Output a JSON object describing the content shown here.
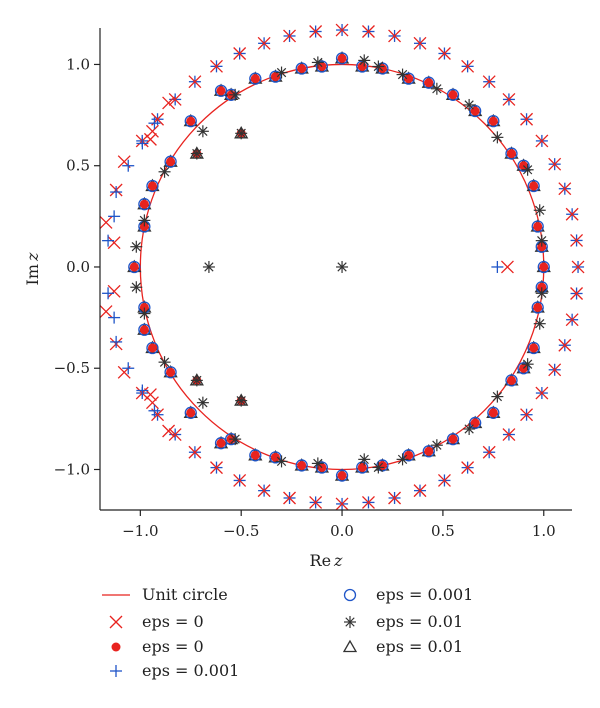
{
  "chart_data": {
    "type": "scatter",
    "title": "",
    "xlabel": "Re z",
    "ylabel": "Im z",
    "xlabel_parts": [
      "Re",
      "z"
    ],
    "ylabel_parts": [
      "Im",
      "z"
    ],
    "xlim": [
      -1.2,
      1.14
    ],
    "ylim": [
      -1.2,
      1.18
    ],
    "x_ticks": [
      -1.0,
      -0.5,
      0.0,
      0.5,
      1.0
    ],
    "y_ticks": [
      -1.0,
      -0.5,
      0.0,
      0.5,
      1.0
    ],
    "x_tick_labels": [
      "−1.0",
      "−0.5",
      "0.0",
      "0.5",
      "1.0"
    ],
    "y_tick_labels": [
      "−1.0",
      "−0.5",
      "0.0",
      "0.5",
      "1.0"
    ],
    "grid": false,
    "legend_placement": "bottom",
    "colors": {
      "red": "#e8231f",
      "blue": "#1f55c8",
      "dark": "#333333"
    },
    "legend": [
      {
        "label": "Unit circle",
        "marker": "line",
        "color": "#e8231f"
      },
      {
        "label": "eps = 0",
        "marker": "x",
        "color": "#e8231f"
      },
      {
        "label": "eps = 0",
        "marker": "dot",
        "color": "#e8231f"
      },
      {
        "label": "eps = 0.001",
        "marker": "plus",
        "color": "#1f55c8"
      },
      {
        "label": "eps = 0.001",
        "marker": "circle",
        "color": "#1f55c8"
      },
      {
        "label": "eps = 0.01",
        "marker": "star",
        "color": "#333333"
      },
      {
        "label": "eps = 0.01",
        "marker": "triangle",
        "color": "#333333"
      }
    ],
    "series": [
      {
        "name": "Unit circle",
        "kind": "line",
        "radius": 1.0
      },
      {
        "name": "eps = 0",
        "marker": "x",
        "outer_ring": {
          "radius": 1.17,
          "count": 56,
          "phase_deg": 0
        },
        "points": [
          [
            0.82,
            0.0
          ],
          [
            -1.12,
            0.38
          ],
          [
            -1.13,
            0.12
          ],
          [
            -1.13,
            -0.12
          ],
          [
            -1.12,
            -0.38
          ],
          [
            -1.08,
            0.52
          ],
          [
            -1.08,
            -0.52
          ],
          [
            -0.94,
            0.67
          ],
          [
            -0.94,
            -0.67
          ],
          [
            -0.95,
            0.63
          ],
          [
            -0.95,
            -0.63
          ],
          [
            -0.86,
            0.81
          ],
          [
            -0.86,
            -0.81
          ],
          [
            -1.17,
            0.22
          ],
          [
            -1.17,
            -0.22
          ]
        ]
      },
      {
        "name": "eps = 0",
        "marker": "dot",
        "near_circle": [
          [
            1.0,
            0.0
          ],
          [
            0.99,
            0.1
          ],
          [
            0.99,
            -0.1
          ],
          [
            0.97,
            0.2
          ],
          [
            0.97,
            -0.2
          ],
          [
            0.95,
            0.4
          ],
          [
            0.95,
            -0.4
          ],
          [
            0.9,
            0.5
          ],
          [
            0.9,
            -0.5
          ],
          [
            0.84,
            0.56
          ],
          [
            0.84,
            -0.56
          ],
          [
            0.75,
            0.72
          ],
          [
            0.75,
            -0.72
          ],
          [
            0.66,
            0.77
          ],
          [
            0.66,
            -0.77
          ],
          [
            0.55,
            0.85
          ],
          [
            0.55,
            -0.85
          ],
          [
            0.43,
            0.91
          ],
          [
            0.43,
            -0.91
          ],
          [
            0.33,
            0.93
          ],
          [
            0.33,
            -0.93
          ],
          [
            0.2,
            0.98
          ],
          [
            0.2,
            -0.98
          ],
          [
            0.1,
            0.99
          ],
          [
            0.1,
            -0.99
          ],
          [
            0.0,
            1.03
          ],
          [
            0.0,
            -1.03
          ],
          [
            -0.1,
            0.99
          ],
          [
            -0.1,
            -0.99
          ],
          [
            -0.2,
            0.98
          ],
          [
            -0.2,
            -0.98
          ],
          [
            -0.33,
            0.94
          ],
          [
            -0.33,
            -0.94
          ],
          [
            -0.43,
            0.93
          ],
          [
            -0.43,
            -0.93
          ],
          [
            -0.55,
            0.85
          ],
          [
            -0.55,
            -0.85
          ],
          [
            -0.6,
            0.87
          ],
          [
            -0.6,
            -0.87
          ],
          [
            -0.75,
            0.72
          ],
          [
            -0.75,
            -0.72
          ],
          [
            -0.85,
            0.52
          ],
          [
            -0.85,
            -0.52
          ],
          [
            -0.94,
            0.4
          ],
          [
            -0.94,
            -0.4
          ],
          [
            -0.98,
            0.2
          ],
          [
            -0.98,
            -0.2
          ],
          [
            -1.03,
            0.0
          ],
          [
            -0.98,
            -0.31
          ],
          [
            -0.98,
            0.31
          ]
        ],
        "inner": [
          [
            -0.5,
            0.66
          ],
          [
            -0.5,
            -0.66
          ],
          [
            -0.72,
            0.56
          ],
          [
            -0.72,
            -0.56
          ]
        ]
      },
      {
        "name": "eps = 0.001",
        "marker": "plus",
        "points": [
          [
            0.77,
            0.0
          ],
          [
            -1.16,
            0.13
          ],
          [
            -1.16,
            -0.13
          ],
          [
            -1.13,
            0.25
          ],
          [
            -1.13,
            -0.25
          ],
          [
            -1.12,
            0.37
          ],
          [
            -1.12,
            -0.37
          ],
          [
            -1.06,
            0.5
          ],
          [
            -1.06,
            -0.5
          ],
          [
            -0.99,
            0.61
          ],
          [
            -0.99,
            -0.61
          ],
          [
            -0.93,
            0.71
          ],
          [
            -0.93,
            -0.71
          ]
        ]
      },
      {
        "name": "eps = 0.001",
        "marker": "circle",
        "note": "same positions as near-circle eps = 0 dots"
      },
      {
        "name": "eps = 0.01",
        "marker": "star",
        "points": [
          [
            0.0,
            0.0
          ],
          [
            -0.66,
            0.0
          ],
          [
            0.99,
            0.13
          ],
          [
            0.99,
            -0.13
          ],
          [
            0.98,
            0.28
          ],
          [
            0.98,
            -0.28
          ],
          [
            0.92,
            0.48
          ],
          [
            0.92,
            -0.48
          ],
          [
            0.77,
            0.64
          ],
          [
            0.77,
            -0.64
          ],
          [
            0.63,
            0.8
          ],
          [
            0.63,
            -0.8
          ],
          [
            0.47,
            0.88
          ],
          [
            0.47,
            -0.88
          ],
          [
            0.3,
            0.95
          ],
          [
            0.3,
            -0.95
          ],
          [
            0.18,
            0.99
          ],
          [
            0.18,
            -0.99
          ],
          [
            0.11,
            1.02
          ],
          [
            0.11,
            -0.95
          ],
          [
            -0.12,
            1.01
          ],
          [
            -0.12,
            -0.97
          ],
          [
            -0.3,
            0.96
          ],
          [
            -0.3,
            -0.96
          ],
          [
            -0.53,
            0.85
          ],
          [
            -0.53,
            -0.85
          ],
          [
            -0.69,
            0.67
          ],
          [
            -0.69,
            -0.67
          ],
          [
            -0.88,
            0.47
          ],
          [
            -0.88,
            -0.47
          ],
          [
            -0.98,
            0.23
          ],
          [
            -0.98,
            -0.23
          ],
          [
            -1.02,
            0.1
          ],
          [
            -1.02,
            -0.1
          ]
        ]
      },
      {
        "name": "eps = 0.01",
        "marker": "triangle",
        "note": "same positions as near-circle eps = 0 dots"
      }
    ]
  }
}
